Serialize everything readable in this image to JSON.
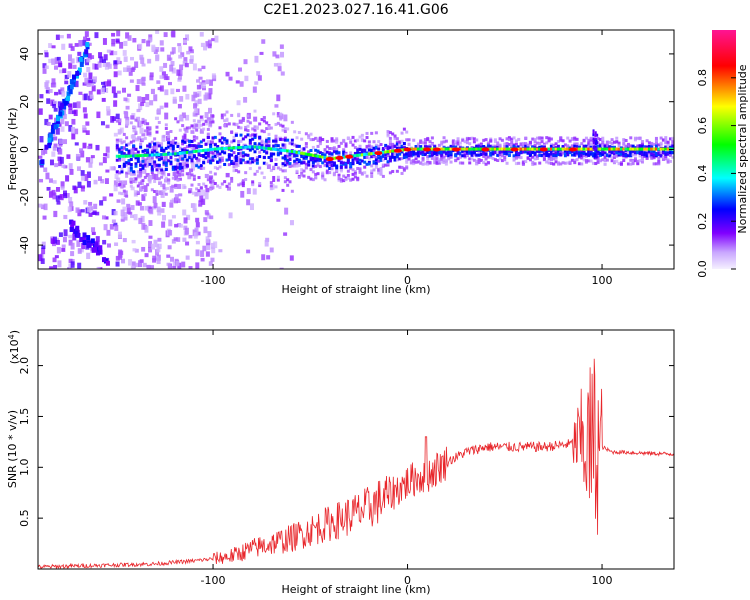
{
  "title": "C2E1.2023.027.16.41.G06",
  "chart_data": [
    {
      "type": "heatmap",
      "xlabel": "Height of straight line (km)",
      "ylabel": "Frequency (Hz)",
      "xlim": [
        -190,
        137
      ],
      "ylim": [
        -50,
        50
      ],
      "xticks": [
        -100,
        0,
        100
      ],
      "yticks": [
        -40,
        -20,
        0,
        20,
        40
      ],
      "colorbar": {
        "label": "Normalized spectral amplitude",
        "range": [
          0,
          1
        ],
        "ticks": [
          "0.0",
          "0.2",
          "0.4",
          "0.6",
          "0.8"
        ],
        "colors": [
          "#f0e6ff",
          "#8000ff",
          "#0000ff",
          "#00ffff",
          "#00ff00",
          "#ffff00",
          "#ff0000",
          "#ff1493"
        ]
      },
      "ridge": [
        {
          "x": -145,
          "y": -3
        },
        {
          "x": -120,
          "y": -2
        },
        {
          "x": -100,
          "y": 0
        },
        {
          "x": -80,
          "y": 1
        },
        {
          "x": -60,
          "y": -1
        },
        {
          "x": -40,
          "y": -4
        },
        {
          "x": -20,
          "y": -2
        },
        {
          "x": 0,
          "y": 0
        },
        {
          "x": 30,
          "y": 0
        },
        {
          "x": 60,
          "y": 0
        },
        {
          "x": 95,
          "y": 0
        },
        {
          "x": 137,
          "y": 0
        }
      ]
    },
    {
      "type": "line",
      "xlabel": "Height of straight line (km)",
      "ylabel": "SNR (10 * v/v)",
      "yscale_label": "(x10",
      "yscale_exp": "4",
      "yscale_suffix": ")",
      "xlim": [
        -190,
        137
      ],
      "ylim": [
        0,
        2.35
      ],
      "xticks": [
        -100,
        0,
        100
      ],
      "yticks": [
        0.5,
        1.0,
        1.5,
        2.0
      ],
      "ytick_labels": [
        "0.5",
        "1.0",
        "1.5",
        "2.0"
      ],
      "color": "#e8262b",
      "series": [
        {
          "x": [
            -190,
            -170,
            -150,
            -130,
            -110,
            -100,
            -90,
            -80,
            -70,
            -60,
            -50,
            -40,
            -30,
            -20,
            -10,
            0,
            5,
            10,
            20,
            30,
            40,
            50,
            60,
            70,
            80,
            90,
            95,
            100,
            105,
            110,
            120,
            137
          ],
          "y": [
            0.02,
            0.03,
            0.04,
            0.05,
            0.08,
            0.1,
            0.13,
            0.2,
            0.25,
            0.3,
            0.38,
            0.45,
            0.52,
            0.6,
            0.72,
            0.85,
            0.9,
            0.92,
            1.05,
            1.15,
            1.2,
            1.2,
            1.2,
            1.2,
            1.22,
            1.25,
            1.2,
            1.2,
            1.15,
            1.15,
            1.14,
            1.13
          ]
        }
      ]
    }
  ]
}
